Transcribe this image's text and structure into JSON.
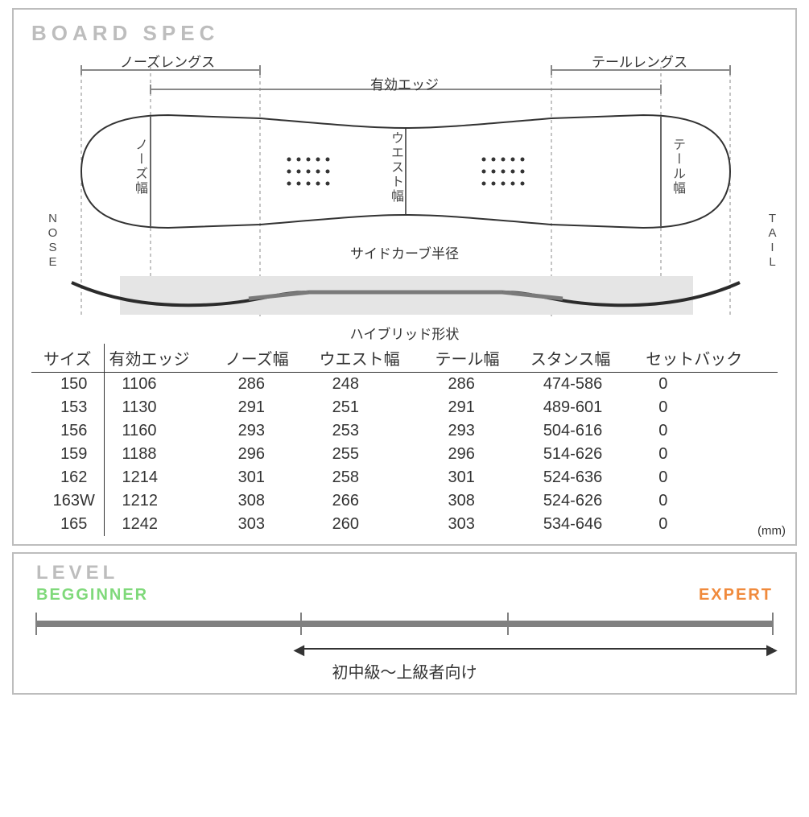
{
  "spec": {
    "title": "BOARD SPEC",
    "diagram": {
      "nose_label": "NOSE",
      "tail_label": "TAIL",
      "nose_length_label": "ノーズレングス",
      "tail_length_label": "テールレングス",
      "effective_edge_label": "有効エッジ",
      "nose_width_label": "ノーズ幅",
      "waist_width_label": "ウエスト幅",
      "tail_width_label": "テール幅",
      "sidecut_label": "サイドカーブ半径",
      "profile_label": "ハイブリッド形状",
      "outline_color": "#333333",
      "guide_color": "#888888",
      "profile_band_color": "#e0e0e0",
      "profile_line_color": "#2b2b2b",
      "profile_accent_color": "#6b6b6b"
    },
    "table": {
      "columns": [
        "サイズ",
        "有効エッジ",
        "ノーズ幅",
        "ウエスト幅",
        "テール幅",
        "スタンス幅",
        "セットバック"
      ],
      "rows": [
        [
          "150",
          "1106",
          "286",
          "248",
          "286",
          "474-586",
          "0"
        ],
        [
          "153",
          "1130",
          "291",
          "251",
          "291",
          "489-601",
          "0"
        ],
        [
          "156",
          "1160",
          "293",
          "253",
          "293",
          "504-616",
          "0"
        ],
        [
          "159",
          "1188",
          "296",
          "255",
          "296",
          "514-626",
          "0"
        ],
        [
          "162",
          "1214",
          "301",
          "258",
          "301",
          "524-636",
          "0"
        ],
        [
          "163W",
          "1212",
          "308",
          "266",
          "308",
          "524-626",
          "0"
        ],
        [
          "165",
          "1242",
          "303",
          "260",
          "303",
          "534-646",
          "0"
        ]
      ],
      "unit": "(mm)"
    }
  },
  "level": {
    "title": "LEVEL",
    "beginner_label": "BEGGINNER",
    "expert_label": "EXPERT",
    "beginner_color": "#7fd97a",
    "expert_color": "#f08a3c",
    "bar_color": "#808080",
    "tick_positions_pct": [
      0,
      36,
      64,
      100
    ],
    "range_start_pct": 36,
    "range_end_pct": 100,
    "range_label": "初中級〜上級者向け"
  }
}
